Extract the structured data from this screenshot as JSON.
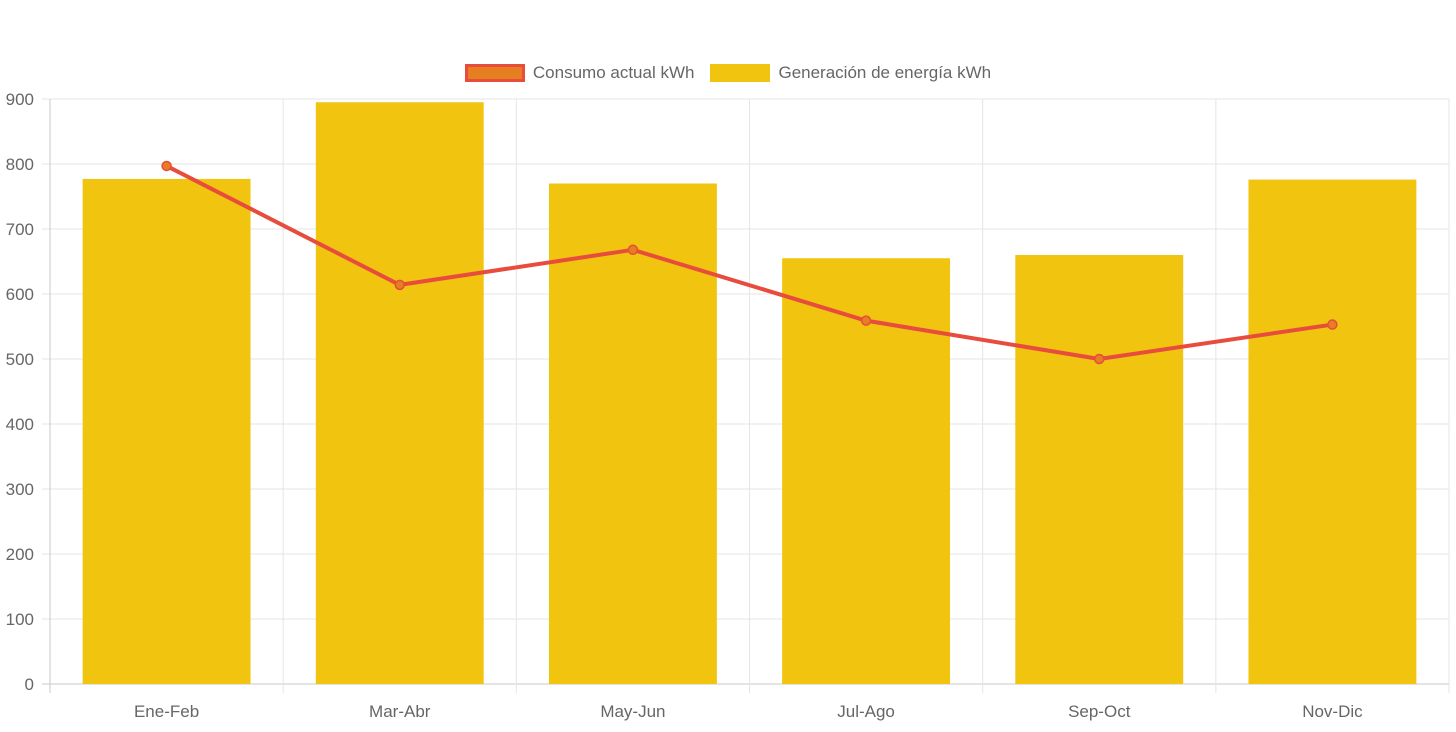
{
  "legend": {
    "consumo_label": "Consumo actual kWh",
    "generacion_label": "Generación de energía kWh"
  },
  "colors": {
    "line": "#e74c3c",
    "line_point_fill": "#e67e22",
    "bar": "#f1c40f",
    "grid": "#e5e5e5",
    "axis": "#c8c8c8",
    "text": "#666666"
  },
  "chart_data": {
    "type": "bar",
    "categories": [
      "Ene-Feb",
      "Mar-Abr",
      "May-Jun",
      "Jul-Ago",
      "Sep-Oct",
      "Nov-Dic"
    ],
    "series": [
      {
        "name": "Consumo actual kWh",
        "type": "line",
        "values": [
          797,
          614,
          668,
          559,
          500,
          553
        ]
      },
      {
        "name": "Generación de energía kWh",
        "type": "bar",
        "values": [
          777,
          895,
          770,
          655,
          660,
          776
        ]
      }
    ],
    "ylim": [
      0,
      900
    ],
    "yticks": [
      0,
      100,
      200,
      300,
      400,
      500,
      600,
      700,
      800,
      900
    ],
    "grid": true,
    "legend_position": "top-center"
  }
}
